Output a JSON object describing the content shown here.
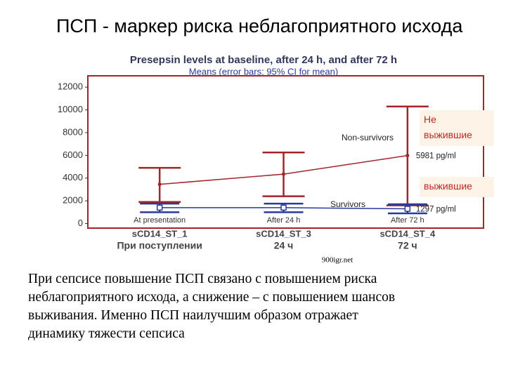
{
  "slide": {
    "title": "ПСП - маркер риска неблагоприятного исхода",
    "watermark": "900igr.net",
    "body_lines": [
      "При сепсисе повышение ПСП  связано с повышением риска",
      "неблагоприятного исхода, а снижение – с повышением шансов",
      "выживания. Именно ПСП наилучшим образом отражает",
      "динамику тяжести сепсиса"
    ],
    "notes": [
      {
        "text_lines": [
          "Не",
          "выжившие"
        ]
      },
      {
        "text_lines": [
          "выжившие"
        ]
      }
    ]
  },
  "chart_data": {
    "type": "line",
    "title": "Presepsin levels at baseline, after 24 h, and after 72 h",
    "subtitle": "Means  (error bars: 95% CI for mean)",
    "categories": [
      "sCD14_ST_1",
      "sCD14_ST_3",
      "sCD14_ST_4"
    ],
    "category_notes": [
      "At presentation",
      "After 24 h",
      "After 72 h"
    ],
    "category_labels_ru": [
      "При поступлении",
      "24 ч",
      "72 ч"
    ],
    "series": [
      {
        "name": "Non-survivors",
        "color": "#a3242a",
        "values": [
          3450,
          4350,
          5981
        ],
        "ci_low": [
          1900,
          2400,
          1600
        ],
        "ci_high": [
          4900,
          6250,
          10300
        ],
        "value_labels": [
          null,
          null,
          "5981 pg/ml"
        ]
      },
      {
        "name": "Survivors",
        "color": "#2a3a9c",
        "values": [
          1400,
          1400,
          1297
        ],
        "ci_low": [
          1000,
          1000,
          900
        ],
        "ci_high": [
          1750,
          1750,
          1700
        ],
        "value_labels": [
          null,
          null,
          "1297 pg/ml"
        ]
      }
    ],
    "ylim": [
      -400,
      13000
    ],
    "yticks": [
      0,
      2000,
      4000,
      6000,
      8000,
      10000,
      12000
    ],
    "grid": false
  }
}
